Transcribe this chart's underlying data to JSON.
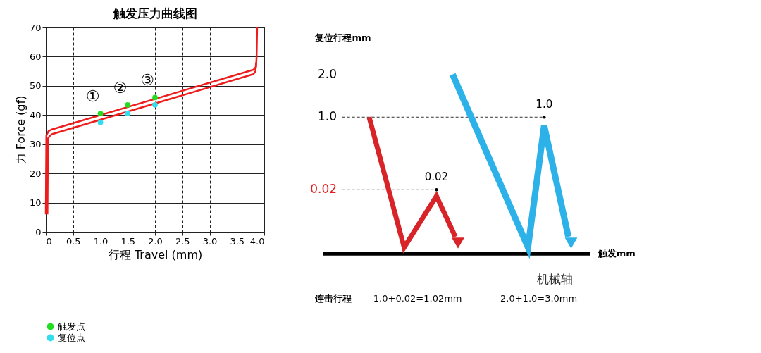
{
  "chart_data": [
    {
      "type": "line",
      "title": "触发压力曲线图",
      "xlabel": "行程 Travel (mm)",
      "ylabel": "力 Force (gf)",
      "xlim": [
        0,
        4
      ],
      "ylim": [
        0,
        70
      ],
      "xticks": [
        0,
        0.5,
        {
          "value": 1,
          "label": "1.0"
        },
        1.5,
        {
          "value": 2,
          "label": "2.0"
        },
        2.5,
        {
          "value": 3,
          "label": "3.0"
        },
        3.5,
        {
          "value": 4,
          "label": "4.0"
        }
      ],
      "yticks": [
        0,
        10,
        20,
        30,
        40,
        50,
        60,
        70
      ],
      "grid": true,
      "legend": "bottom left",
      "series": [
        {
          "type": "line",
          "color": "#ee1c1c",
          "x": [
            0.0,
            0.01,
            0.05,
            0.1,
            3.8,
            3.85,
            3.86,
            3.87
          ],
          "values": [
            6,
            33,
            34.5,
            35,
            55.5,
            56.5,
            60,
            70
          ]
        },
        {
          "type": "line",
          "color": "#ee1c1c",
          "x": [
            0.03,
            0.04,
            0.08,
            0.12,
            3.8,
            3.84,
            3.85
          ],
          "values": [
            6,
            32,
            33,
            33.5,
            54,
            55,
            58
          ]
        },
        {
          "type": "scatter",
          "name": "触发点",
          "color": "#22dd22",
          "x": [
            1.0,
            1.5,
            2.0
          ],
          "values": [
            40.5,
            43.5,
            46
          ]
        },
        {
          "type": "scatter",
          "name": "复位点",
          "color": "#33ddee",
          "x": [
            1.0,
            1.5,
            2.0
          ],
          "values": [
            37.5,
            40.5,
            43.5
          ]
        }
      ],
      "annotations": [
        "①",
        "②",
        "③"
      ]
    },
    {
      "type": "other",
      "ylabel": "复位行程mm",
      "xlabel": "触发mm",
      "annotations": [
        "2.0",
        "1.0",
        "0.02",
        "0.02",
        "1.0",
        "机械轴",
        "连击行程",
        "1.0+0.02=1.02mm",
        "2.0+1.0=3.0mm"
      ]
    }
  ]
}
